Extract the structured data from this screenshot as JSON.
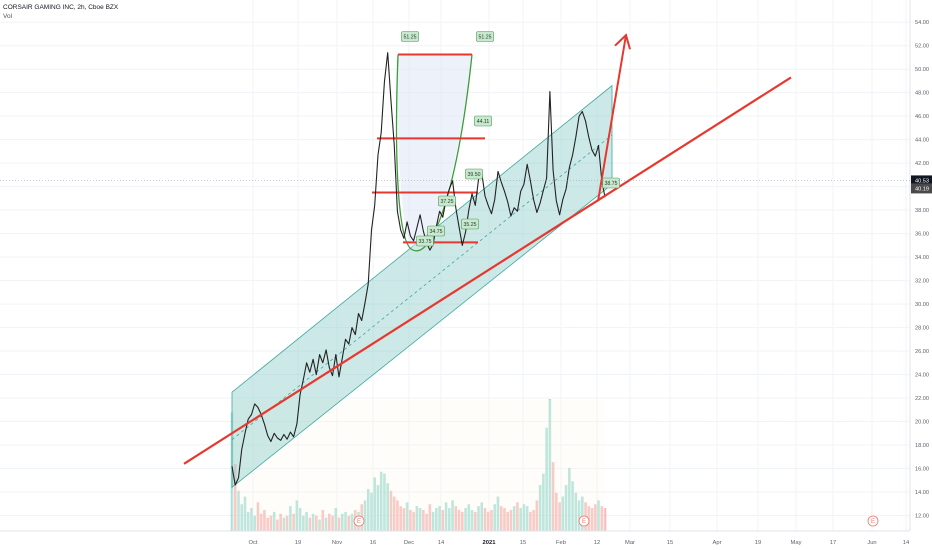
{
  "header": {
    "symbol_line": "CORSAIR GAMING INC, 2h, Cboe BZX",
    "volume_label": "Vol"
  },
  "colors": {
    "price_line": "#222222",
    "channel_fill": "#8ecfc9",
    "channel_edge": "#3fa8a0",
    "trend_line": "#e8372f",
    "cup_line": "#3a9d3a",
    "vol_up": "#8fd6cc",
    "vol_down": "#f4a6a6",
    "label_bg": "#c9e8cf",
    "label_border": "#4a9a55",
    "last_price_bg": "#131722",
    "crosshair_bg": "#4a4a4a"
  },
  "chart_data": {
    "type": "line",
    "title": "CORSAIR GAMING INC, 2h, Cboe BZX",
    "xlabel": "",
    "ylabel": "",
    "ylim": [
      11,
      54
    ],
    "x_ticks": [
      "Oct",
      "19",
      "Nov",
      "16",
      "Dec",
      "14",
      "2021",
      "15",
      "Feb",
      "12",
      "Mar",
      "15",
      "Apr",
      "19",
      "May",
      "17",
      "Jun",
      "14"
    ],
    "y_ticks": [
      "12.00",
      "14.00",
      "16.00",
      "18.00",
      "20.00",
      "22.00",
      "24.00",
      "26.00",
      "28.00",
      "30.00",
      "32.00",
      "34.00",
      "36.00",
      "38.00",
      "40.00",
      "42.00",
      "44.00",
      "46.00",
      "48.00",
      "50.00",
      "52.00",
      "54.00"
    ],
    "y_tick_values": [
      12,
      14,
      16,
      18,
      20,
      22,
      24,
      26,
      28,
      30,
      32,
      34,
      36,
      38,
      40,
      42,
      44,
      46,
      48,
      50,
      52,
      54
    ],
    "last_price": "40.53",
    "crosshair_price": "40.19",
    "series": [
      {
        "type": "line",
        "values": [
          16.2,
          14.6,
          15.2,
          17.6,
          19.0,
          20.2,
          20.6,
          21.5,
          21.2,
          20.6,
          19.8,
          18.8,
          18.3,
          19.0,
          18.6,
          18.4,
          18.9,
          18.5,
          19.1,
          18.7,
          19.8,
          22.3,
          23.6,
          25.0,
          24.2,
          25.3,
          24.0,
          25.7,
          25.0,
          26.1,
          24.6,
          23.9,
          25.7,
          23.8,
          25.4,
          27.0,
          26.6,
          28.0,
          27.4,
          29.2,
          28.6,
          30.1,
          31.7,
          36.3,
          38.4,
          42.7,
          44.6,
          48.9,
          51.4,
          47.4,
          43.6,
          37.9,
          36.3,
          35.6,
          37.0,
          35.8,
          35.4,
          36.5,
          37.6,
          36.2,
          35.2,
          34.6,
          35.1,
          36.6,
          37.9,
          37.4,
          38.9,
          39.8,
          40.5,
          38.2,
          36.6,
          35.0,
          36.1,
          38.0,
          39.4,
          38.4,
          40.6,
          41.2,
          39.2,
          38.4,
          37.7,
          38.9,
          41.3,
          40.4,
          39.6,
          38.7,
          37.5,
          38.2,
          37.9,
          39.6,
          40.2,
          41.9,
          40.5,
          38.9,
          37.8,
          38.6,
          39.7,
          40.7,
          48.1,
          41.4,
          38.8,
          37.6,
          38.9,
          39.8,
          41.6,
          42.7,
          44.2,
          46.0,
          46.4,
          45.6,
          44.2,
          43.1,
          42.6,
          43.5,
          40.5,
          39.1
        ]
      },
      {
        "type": "bar",
        "name": "Vol",
        "values": [
          6.2,
          3.5,
          2.1,
          1.4,
          1.8,
          1.0,
          1.2,
          0.8,
          1.5,
          0.9,
          1.1,
          0.7,
          0.8,
          1.0,
          0.6,
          0.9,
          0.7,
          0.8,
          1.3,
          0.9,
          1.6,
          1.2,
          0.8,
          1.0,
          0.7,
          0.9,
          0.8,
          0.6,
          1.1,
          0.7,
          0.9,
          0.8,
          1.2,
          0.7,
          0.9,
          1.0,
          0.8,
          0.9,
          1.1,
          1.0,
          1.4,
          1.6,
          2.2,
          2.0,
          2.8,
          2.4,
          3.1,
          3.0,
          2.5,
          2.1,
          1.8,
          1.6,
          1.3,
          1.2,
          1.5,
          1.1,
          1.0,
          1.3,
          1.2,
          1.1,
          0.9,
          1.4,
          1.0,
          1.2,
          1.3,
          1.1,
          1.5,
          1.2,
          1.6,
          1.3,
          1.1,
          1.0,
          1.2,
          1.4,
          1.1,
          1.0,
          1.3,
          1.5,
          1.2,
          1.0,
          1.1,
          1.4,
          1.8,
          1.3,
          1.2,
          1.0,
          1.1,
          1.3,
          1.5,
          1.2,
          1.4,
          1.3,
          1.0,
          1.1,
          1.6,
          2.4,
          3.0,
          5.4,
          6.9,
          3.6,
          2.0,
          1.5,
          1.8,
          2.4,
          3.3,
          2.6,
          2.0,
          1.6,
          1.8,
          1.5,
          1.3,
          1.2,
          1.4,
          1.6,
          1.3,
          1.2
        ]
      }
    ],
    "annotations": [
      {
        "text": "51.25",
        "value": 51.25
      },
      {
        "text": "51.25",
        "value": 51.25
      },
      {
        "text": "44.11",
        "value": 44.11
      },
      {
        "text": "39.50",
        "value": 39.5
      },
      {
        "text": "37.25",
        "value": 37.25
      },
      {
        "text": "34.75",
        "value": 34.75
      },
      {
        "text": "35.25",
        "value": 35.25
      },
      {
        "text": "33.75",
        "value": 33.75
      },
      {
        "text": "38.75",
        "value": 38.75
      }
    ],
    "event_markers": [
      "E",
      "E",
      "E"
    ]
  }
}
